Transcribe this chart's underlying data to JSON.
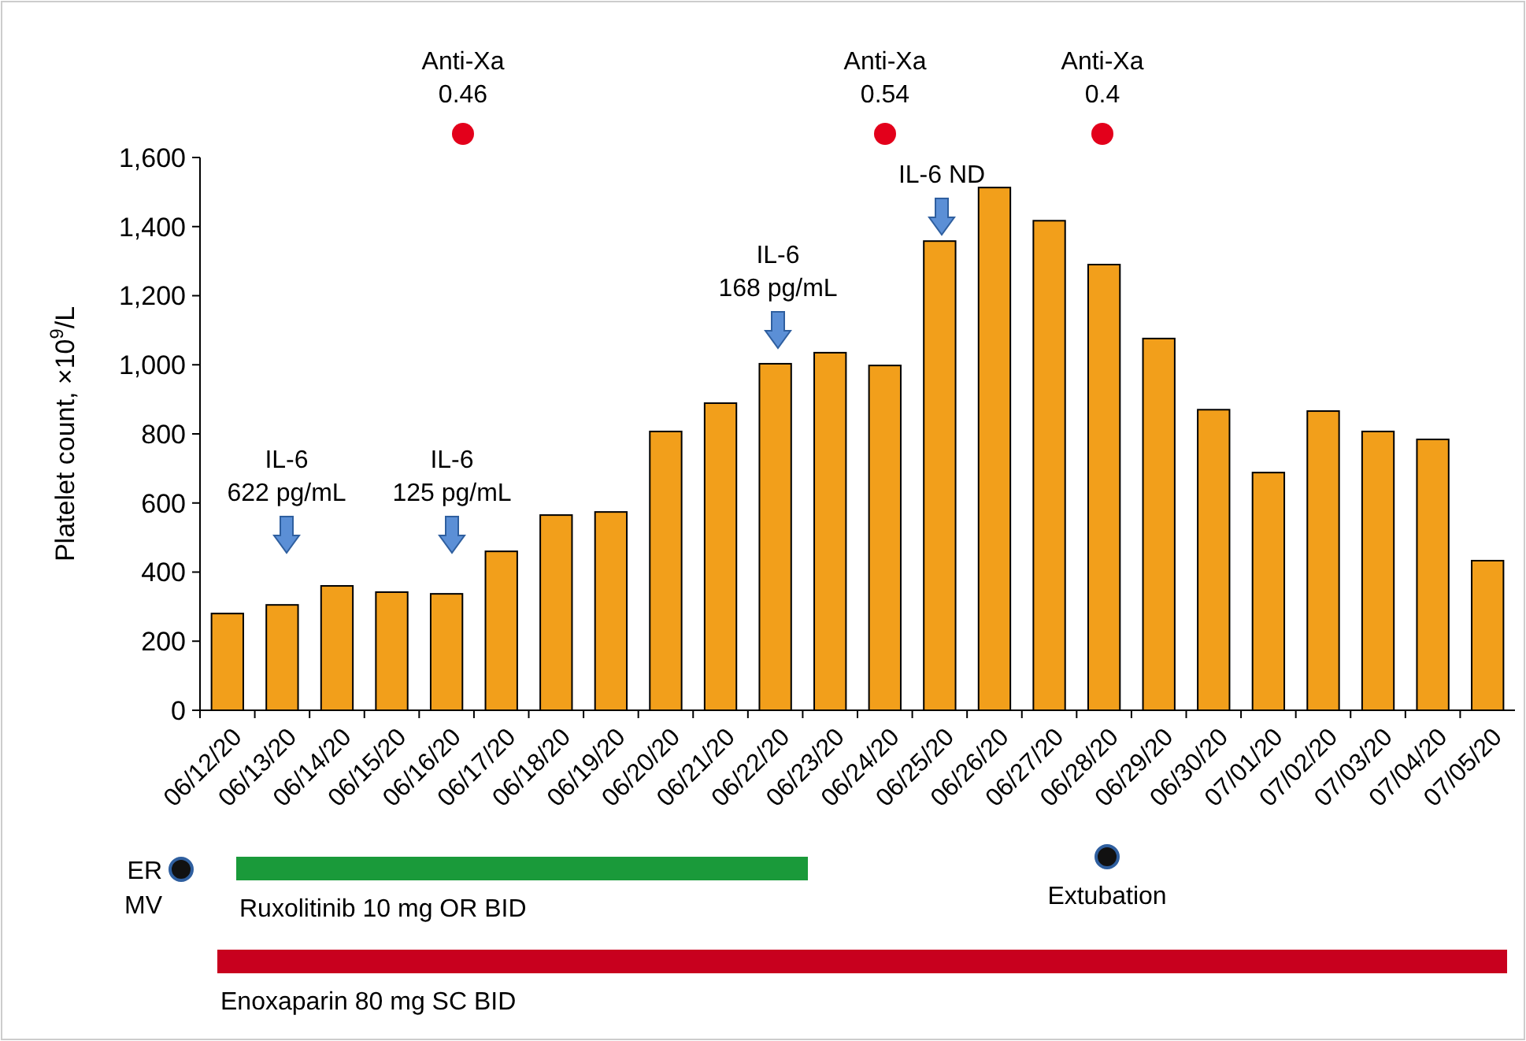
{
  "chart_data": {
    "type": "bar",
    "ylabel": "Platelet count, ×10$^{9}$/L",
    "categories": [
      "06/12/20",
      "06/13/20",
      "06/14/20",
      "06/15/20",
      "06/16/20",
      "06/17/20",
      "06/18/20",
      "06/19/20",
      "06/20/20",
      "06/21/20",
      "06/22/20",
      "06/23/20",
      "06/24/20",
      "06/25/20",
      "06/26/20",
      "06/27/20",
      "06/28/20",
      "06/29/20",
      "06/30/20",
      "07/01/20",
      "07/02/20",
      "07/03/20",
      "07/04/20",
      "07/05/20"
    ],
    "values": [
      280,
      305,
      360,
      342,
      337,
      460,
      565,
      574,
      807,
      889,
      1003,
      1035,
      998,
      1358,
      1513,
      1417,
      1290,
      1076,
      870,
      688,
      866,
      807,
      784,
      433
    ],
    "color": "#f29f1b",
    "ylim": [
      0,
      1600
    ],
    "yticks": [
      0,
      200,
      400,
      600,
      800,
      {
        "value": 1000,
        "label": "1,000"
      },
      {
        "value": 1200,
        "label": "1,200"
      },
      {
        "value": 1400,
        "label": "1,400"
      },
      {
        "value": 1600,
        "label": "1,600"
      }
    ],
    "grid": false,
    "annotations": [
      "IL-6\n622 pg/mL",
      "IL-6\n125 pg/mL",
      "IL-6\n168 pg/mL",
      "IL-6 ND",
      "Anti-Xa\n0.46",
      "Anti-Xa\n0.54",
      "Anti-Xa\n0.4",
      "Extubation",
      "ER\nMV",
      "Ruxolitinib 10 mg OR BID",
      "Enoxaparin 80 mg SC BID"
    ]
  }
}
